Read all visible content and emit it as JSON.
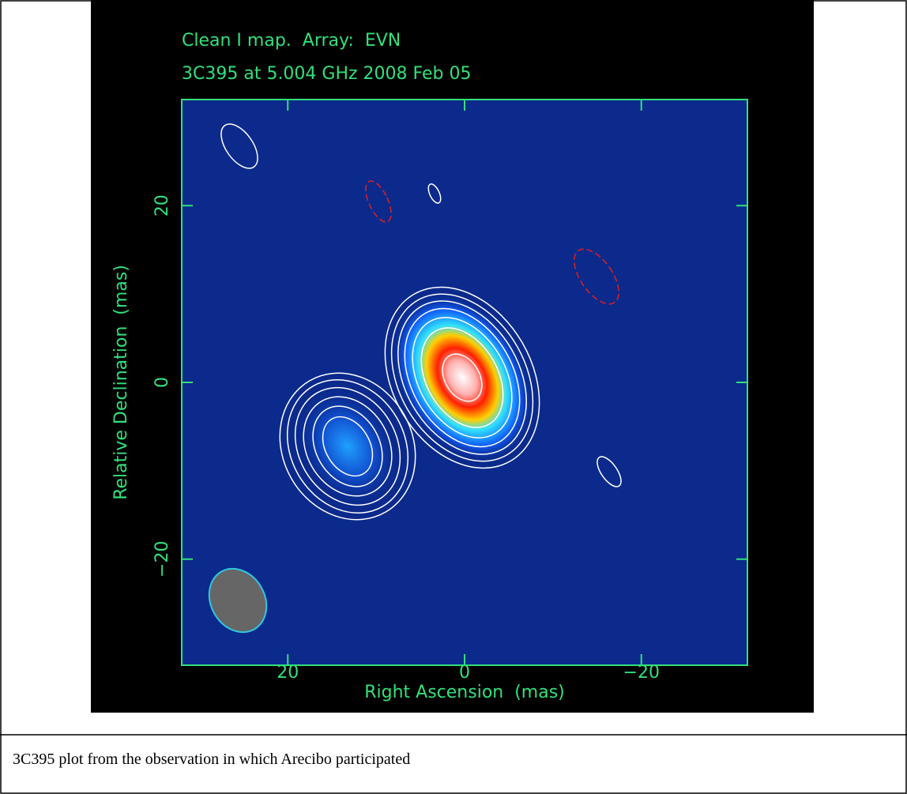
{
  "figure": {
    "title_lines": [
      "Clean I map.  Array:  EVN",
      "3C395 at 5.004 GHz 2008 Feb 05"
    ],
    "x_label": "Right Ascension  (mas)",
    "y_label": "Relative Declination  (mas)",
    "xlim": [
      32,
      -32
    ],
    "ylim": [
      -32,
      32
    ],
    "xticks": [
      20,
      0,
      {
        "value": -20,
        "label": "−20"
      }
    ],
    "yticks": [
      {
        "value": -20,
        "label": "−20"
      },
      0,
      20
    ]
  },
  "caption": "3C395 plot from the observation in which Arecibo participated"
}
